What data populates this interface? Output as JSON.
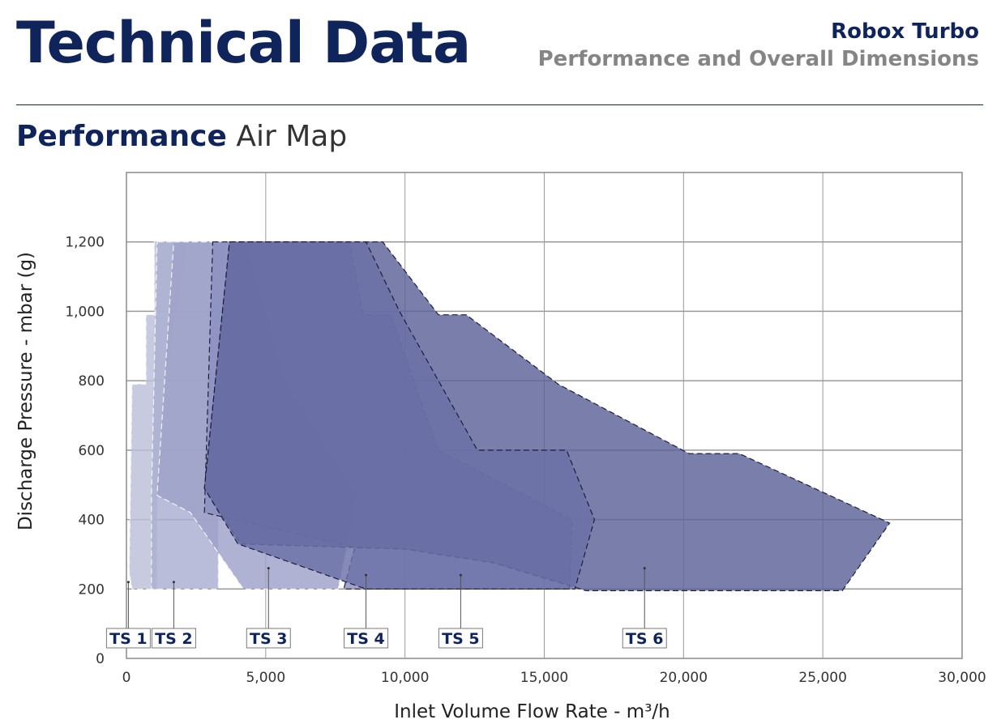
{
  "header": {
    "title": "Technical Data",
    "brand": "Robox Turbo",
    "subtitle": "Performance and Overall Dimensions"
  },
  "section": {
    "title_bold": "Performance",
    "title_light": "Air Map"
  },
  "chart_data": {
    "type": "area",
    "title": "",
    "xlabel": "Inlet Volume Flow Rate - m³/h",
    "ylabel": "Discharge Pressure - mbar (g)",
    "xlim": [
      0,
      30000
    ],
    "ylim": [
      0,
      1400
    ],
    "xticks": [
      0,
      5000,
      10000,
      15000,
      20000,
      25000,
      30000
    ],
    "xtick_labels": [
      "0",
      "5,000",
      "10,000",
      "15,000",
      "20,000",
      "25,000",
      "30,000"
    ],
    "yticks": [
      0,
      200,
      400,
      600,
      800,
      1000,
      1200
    ],
    "ytick_labels": [
      "0",
      "200",
      "400",
      "600",
      "800",
      "1,000",
      "1,200"
    ],
    "grid": true,
    "series": [
      {
        "name": "TS 1",
        "color": "#bcbfd8",
        "label_x": 70,
        "label_anchor_y": 220,
        "points": [
          [
            200,
            790
          ],
          [
            700,
            790
          ],
          [
            700,
            990
          ],
          [
            1000,
            990
          ],
          [
            1000,
            1200
          ],
          [
            2200,
            1200
          ],
          [
            1400,
            800
          ],
          [
            1200,
            600
          ],
          [
            1100,
            400
          ],
          [
            1100,
            200
          ],
          [
            200,
            200
          ],
          [
            100,
            250
          ]
        ]
      },
      {
        "name": "TS 2",
        "color": "#abaed1",
        "label_x": 1700,
        "label_anchor_y": 220,
        "points": [
          [
            1100,
            1200
          ],
          [
            3600,
            1200
          ],
          [
            3200,
            700
          ],
          [
            3300,
            400
          ],
          [
            3300,
            200
          ],
          [
            900,
            200
          ],
          [
            900,
            470
          ]
        ]
      },
      {
        "name": "TS 3",
        "color": "#9ea1c8",
        "label_x": 5100,
        "label_anchor_y": 260,
        "points": [
          [
            1700,
            1200
          ],
          [
            4300,
            1200
          ],
          [
            5700,
            800
          ],
          [
            8300,
            470
          ],
          [
            7600,
            200
          ],
          [
            4200,
            200
          ],
          [
            2300,
            420
          ],
          [
            1100,
            470
          ]
        ]
      },
      {
        "name": "TS 4",
        "color": "#8c90bf",
        "label_x": 8600,
        "label_anchor_y": 240,
        "points": [
          [
            3100,
            1200
          ],
          [
            8000,
            1200
          ],
          [
            8500,
            990
          ],
          [
            9500,
            990
          ],
          [
            10300,
            800
          ],
          [
            11200,
            600
          ],
          [
            16000,
            400
          ],
          [
            15900,
            200
          ],
          [
            7800,
            200
          ],
          [
            8200,
            320
          ],
          [
            2800,
            420
          ]
        ]
      },
      {
        "name": "TS 5",
        "color": "#6a70a6",
        "label_x": 12000,
        "label_anchor_y": 240,
        "points": [
          [
            3700,
            1200
          ],
          [
            8600,
            1200
          ],
          [
            9800,
            1000
          ],
          [
            11200,
            800
          ],
          [
            12600,
            600
          ],
          [
            15800,
            600
          ],
          [
            16800,
            400
          ],
          [
            16100,
            200
          ],
          [
            8600,
            200
          ],
          [
            4000,
            330
          ],
          [
            2800,
            490
          ]
        ]
      },
      {
        "name": "TS 6",
        "color": "#5b6199",
        "label_x": 18600,
        "label_anchor_y": 260,
        "points": [
          [
            3700,
            1200
          ],
          [
            9200,
            1200
          ],
          [
            11200,
            990
          ],
          [
            12200,
            990
          ],
          [
            15500,
            790
          ],
          [
            20200,
            590
          ],
          [
            22000,
            590
          ],
          [
            27400,
            390
          ],
          [
            25700,
            195
          ],
          [
            16500,
            195
          ],
          [
            13200,
            275
          ],
          [
            10000,
            315
          ],
          [
            4100,
            330
          ],
          [
            2800,
            490
          ]
        ]
      }
    ],
    "series_draw_order": [
      0,
      1,
      2,
      3,
      5,
      4
    ]
  }
}
